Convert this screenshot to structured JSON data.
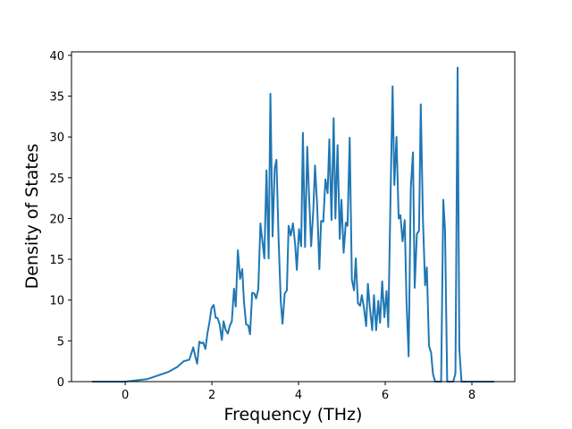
{
  "chart_data": {
    "type": "line",
    "xlabel": "Frequency (THz)",
    "ylabel": "Density of States",
    "color": "#1f77b4",
    "x": [
      -0.77,
      0,
      0.5,
      1.0,
      1.2,
      1.35,
      1.48,
      1.57,
      1.62,
      1.66,
      1.71,
      1.76,
      1.8,
      1.85,
      1.9,
      1.95,
      1.99,
      2.04,
      2.09,
      2.13,
      2.18,
      2.23,
      2.27,
      2.32,
      2.37,
      2.41,
      2.46,
      2.51,
      2.55,
      2.6,
      2.65,
      2.7,
      2.74,
      2.79,
      2.84,
      2.88,
      2.93,
      2.98,
      3.02,
      3.07,
      3.12,
      3.16,
      3.21,
      3.26,
      3.31,
      3.35,
      3.4,
      3.45,
      3.49,
      3.54,
      3.59,
      3.63,
      3.68,
      3.73,
      3.77,
      3.82,
      3.87,
      3.92,
      3.96,
      4.01,
      4.06,
      4.1,
      4.15,
      4.2,
      4.24,
      4.29,
      4.34,
      4.38,
      4.43,
      4.48,
      4.52,
      4.57,
      4.62,
      4.67,
      4.71,
      4.76,
      4.81,
      4.85,
      4.9,
      4.95,
      4.99,
      5.04,
      5.09,
      5.13,
      5.18,
      5.23,
      5.28,
      5.32,
      5.37,
      5.42,
      5.46,
      5.51,
      5.56,
      5.6,
      5.65,
      5.7,
      5.74,
      5.79,
      5.84,
      5.88,
      5.93,
      5.98,
      6.03,
      6.07,
      6.12,
      6.17,
      6.21,
      6.26,
      6.31,
      6.35,
      6.4,
      6.45,
      6.49,
      6.54,
      6.59,
      6.64,
      6.68,
      6.73,
      6.78,
      6.82,
      6.87,
      6.92,
      6.96,
      7.01,
      7.06,
      7.1,
      7.15,
      7.29,
      7.34,
      7.38,
      7.43,
      7.57,
      7.62,
      7.67,
      7.71,
      7.76,
      8.52
    ],
    "values": [
      0,
      0,
      0.3,
      1.2,
      1.8,
      2.5,
      2.7,
      4.2,
      3.0,
      2.2,
      4.9,
      4.7,
      4.8,
      4.0,
      6.0,
      7.5,
      9.0,
      9.4,
      7.8,
      7.8,
      7.0,
      5.1,
      7.4,
      6.3,
      5.9,
      6.8,
      7.4,
      11.4,
      9.2,
      16.1,
      12.6,
      13.8,
      9.8,
      7.0,
      6.9,
      5.8,
      10.9,
      10.8,
      10.2,
      11.3,
      19.4,
      17.5,
      15.1,
      25.9,
      15.1,
      35.3,
      17.8,
      26.2,
      27.2,
      17.3,
      9.8,
      7.1,
      10.8,
      11.2,
      19.1,
      17.9,
      19.4,
      16.9,
      13.7,
      18.7,
      16.6,
      30.5,
      16.5,
      28.8,
      23.1,
      16.6,
      21.0,
      26.5,
      21.5,
      13.8,
      19.7,
      19.6,
      24.8,
      23.1,
      29.7,
      19.8,
      32.3,
      20.0,
      29.0,
      17.5,
      22.3,
      15.8,
      19.5,
      19.1,
      29.9,
      12.5,
      11.2,
      15.1,
      9.6,
      9.3,
      10.6,
      9.0,
      6.8,
      12.0,
      8.8,
      6.3,
      10.6,
      6.3,
      9.9,
      7.2,
      12.3,
      7.9,
      11.1,
      6.7,
      22.0,
      36.2,
      24.1,
      30.0,
      20.0,
      20.4,
      17.2,
      19.8,
      10.0,
      3.1,
      23.8,
      28.1,
      11.5,
      18.1,
      18.5,
      34.0,
      20.0,
      11.8,
      14.0,
      4.4,
      3.5,
      1.0,
      0,
      0,
      22.3,
      18.5,
      0,
      0,
      1.0,
      38.5,
      4.0,
      0,
      0
    ],
    "xlim": [
      -1.24,
      8.99
    ],
    "ylim": [
      0,
      40.43
    ],
    "xticks": [
      0,
      2,
      4,
      6,
      8
    ],
    "yticks": [
      0,
      5,
      10,
      15,
      20,
      25,
      30,
      35,
      40
    ]
  }
}
